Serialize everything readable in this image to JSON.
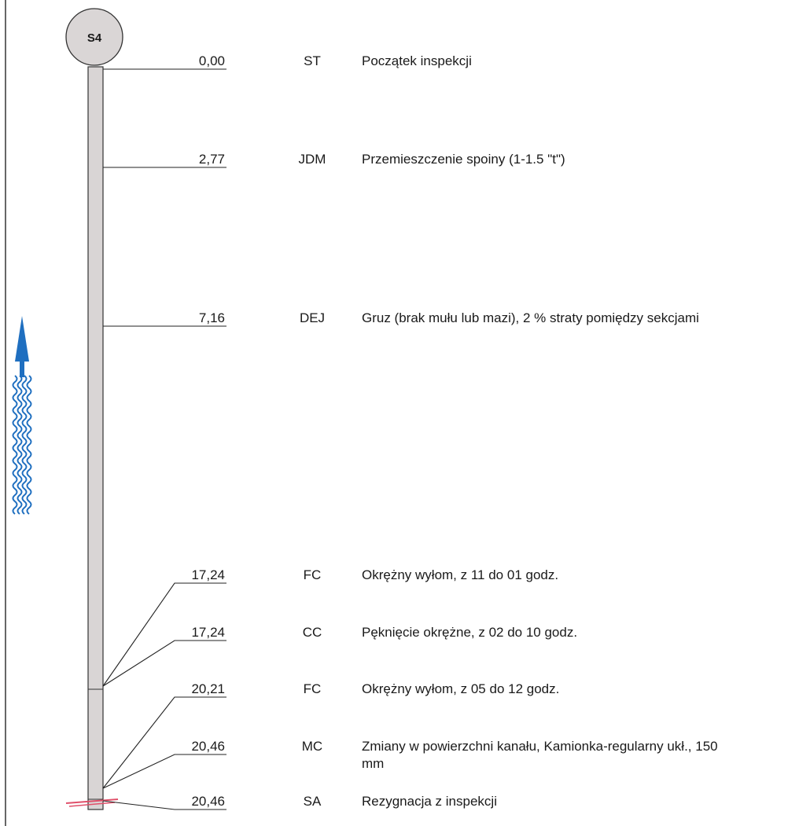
{
  "manhole": {
    "label": "S4"
  },
  "flow_arrow": {
    "icon": "flow-direction-arrow-icon",
    "color": "#1f6fc0"
  },
  "colors": {
    "pipe_fill": "#d9d5d5",
    "pipe_stroke": "#333333",
    "abandon_mark": "#e0506a"
  },
  "observations": [
    {
      "distance": "0,00",
      "code": "ST",
      "description": [
        "Początek inspekcji"
      ]
    },
    {
      "distance": "2,77",
      "code": "JDM",
      "description": [
        "Przemieszczenie spoiny (1-1.5 \"t\")"
      ]
    },
    {
      "distance": "7,16",
      "code": "DEJ",
      "description": [
        "Gruz (brak mułu lub mazi), 2 % straty pomiędzy sekcjami"
      ]
    },
    {
      "distance": "17,24",
      "code": "FC",
      "description": [
        "Okrężny wyłom, z 11 do 01 godz."
      ]
    },
    {
      "distance": "17,24",
      "code": "CC",
      "description": [
        "Pęknięcie okrężne, z 02 do 10 godz."
      ]
    },
    {
      "distance": "20,21",
      "code": "FC",
      "description": [
        "Okrężny wyłom, z 05 do 12 godz."
      ]
    },
    {
      "distance": "20,46",
      "code": "MC",
      "description": [
        "Zmiany w powierzchni kanału, Kamionka-regularny ukł., 150",
        "mm"
      ]
    },
    {
      "distance": "20,46",
      "code": "SA",
      "description": [
        "Rezygnacja z inspekcji"
      ]
    }
  ]
}
